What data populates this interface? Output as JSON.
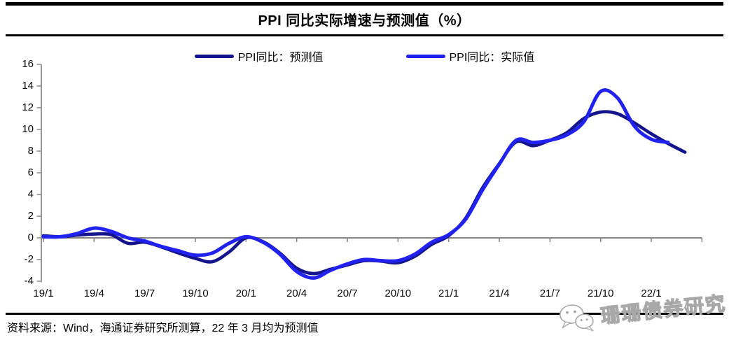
{
  "header": {
    "title": "PPI 同比实际增速与预测值（%）"
  },
  "legend": {
    "items": [
      {
        "label": "PPI同比：预测值",
        "color": "#14148C"
      },
      {
        "label": "PPI同比：实际值",
        "color": "#2222F0"
      }
    ]
  },
  "footer": {
    "source_note": "资料来源：Wind，海通证券研究所测算，22 年 3 月均为预测值"
  },
  "watermark": {
    "icon": "wechat-icon",
    "text": "珊珊债券研究"
  },
  "chart_data": {
    "type": "line",
    "title": "PPI 同比实际增速与预测值（%）",
    "xlabel": "",
    "ylabel": "",
    "ylim": [
      -4,
      16
    ],
    "y_ticks": [
      16,
      14,
      12,
      10,
      8,
      6,
      4,
      2,
      0,
      -2,
      -4
    ],
    "x_tick_labels": [
      "19/1",
      "19/4",
      "19/7",
      "19/10",
      "20/1",
      "20/4",
      "20/7",
      "20/10",
      "21/1",
      "21/4",
      "21/7",
      "21/10",
      "22/1"
    ],
    "x": [
      "19/1",
      "19/2",
      "19/3",
      "19/4",
      "19/5",
      "19/6",
      "19/7",
      "19/8",
      "19/9",
      "19/10",
      "19/11",
      "19/12",
      "20/1",
      "20/2",
      "20/3",
      "20/4",
      "20/5",
      "20/6",
      "20/7",
      "20/8",
      "20/9",
      "20/10",
      "20/11",
      "20/12",
      "21/1",
      "21/2",
      "21/3",
      "21/4",
      "21/5",
      "21/6",
      "21/7",
      "21/8",
      "21/9",
      "21/10",
      "21/11",
      "21/12",
      "22/1",
      "22/2",
      "22/3"
    ],
    "series": [
      {
        "name": "PPI同比：预测值",
        "color": "#14148C",
        "values": [
          0.2,
          0.1,
          0.25,
          0.35,
          0.3,
          -0.5,
          -0.4,
          -0.85,
          -1.4,
          -1.9,
          -2.2,
          -1.3,
          0.0,
          -0.35,
          -1.4,
          -2.8,
          -3.3,
          -2.9,
          -2.5,
          -2.1,
          -2.15,
          -2.3,
          -1.7,
          -0.6,
          0.2,
          1.8,
          4.6,
          6.85,
          8.85,
          8.5,
          9.0,
          9.7,
          11.0,
          11.6,
          11.45,
          10.6,
          9.6,
          8.7,
          7.9
        ]
      },
      {
        "name": "PPI同比：实际值",
        "color": "#2222F0",
        "values": [
          0.1,
          0.1,
          0.4,
          0.9,
          0.6,
          0.0,
          -0.3,
          -0.8,
          -1.2,
          -1.6,
          -1.4,
          -0.5,
          0.1,
          -0.4,
          -1.5,
          -3.1,
          -3.7,
          -3.0,
          -2.4,
          -2.0,
          -2.1,
          -2.1,
          -1.5,
          -0.4,
          0.3,
          1.7,
          4.4,
          6.8,
          9.0,
          8.8,
          9.0,
          9.5,
          10.7,
          13.5,
          12.9,
          10.3,
          9.1,
          8.8,
          null
        ]
      }
    ],
    "grid": false,
    "zero_line": true,
    "legend_position": "top",
    "axis_color": "#8C8C8C"
  }
}
